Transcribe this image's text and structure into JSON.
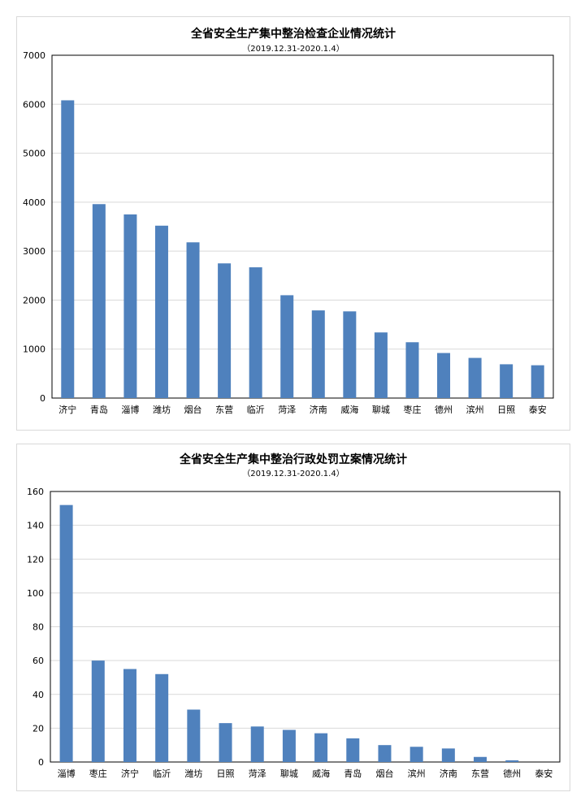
{
  "colors": {
    "bar": "#4f81bd",
    "grid": "#d9d9d9",
    "axis": "#000000"
  },
  "chart_data": [
    {
      "type": "bar",
      "title": "全省安全生产集中整治检查企业情况统计",
      "subtitle": "（2019.12.31-2020.1.4）",
      "xlabel": "",
      "ylabel": "",
      "ylim": [
        0,
        7000
      ],
      "yticks": [
        0,
        1000,
        2000,
        3000,
        4000,
        5000,
        6000,
        7000
      ],
      "grid": true,
      "legend": "none",
      "categories": [
        "济宁",
        "青岛",
        "淄博",
        "潍坊",
        "烟台",
        "东营",
        "临沂",
        "菏泽",
        "济南",
        "威海",
        "聊城",
        "枣庄",
        "德州",
        "滨州",
        "日照",
        "泰安"
      ],
      "values": [
        6080,
        3960,
        3750,
        3520,
        3180,
        2750,
        2670,
        2100,
        1790,
        1770,
        1340,
        1140,
        920,
        820,
        690,
        670
      ]
    },
    {
      "type": "bar",
      "title": "全省安全生产集中整治行政处罚立案情况统计",
      "subtitle": "（2019.12.31-2020.1.4）",
      "xlabel": "",
      "ylabel": "",
      "ylim": [
        0,
        160
      ],
      "yticks": [
        0,
        20,
        40,
        60,
        80,
        100,
        120,
        140,
        160
      ],
      "grid": true,
      "legend": "none",
      "categories": [
        "淄博",
        "枣庄",
        "济宁",
        "临沂",
        "潍坊",
        "日照",
        "菏泽",
        "聊城",
        "威海",
        "青岛",
        "烟台",
        "滨州",
        "济南",
        "东营",
        "德州",
        "泰安"
      ],
      "values": [
        152,
        60,
        55,
        52,
        31,
        23,
        21,
        19,
        17,
        14,
        10,
        9,
        8,
        3,
        1,
        0
      ]
    }
  ]
}
